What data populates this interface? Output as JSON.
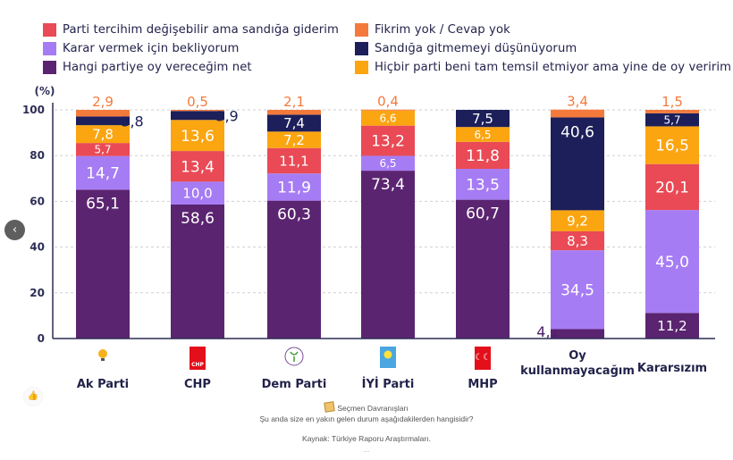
{
  "legend": [
    {
      "key": "tercih_degisebilir",
      "label": "Parti tercihim değişebilir ama sandığa giderim",
      "color": "#e94a55"
    },
    {
      "key": "karar_bekliyor",
      "label": "Karar vermek için bekliyorum",
      "color": "#a67cf4"
    },
    {
      "key": "net",
      "label": "Hangi partiye oy vereceğim net",
      "color": "#5b2470"
    },
    {
      "key": "fikrim_yok",
      "label": "Fikrim yok / Cevap yok",
      "color": "#f47a3c"
    },
    {
      "key": "sandiga_gitmeme",
      "label": "Sandığa gitmemeyi düşünüyorum",
      "color": "#1c1f5a"
    },
    {
      "key": "hicbir_parti",
      "label": "Hiçbir parti beni tam temsil etmiyor ama yine de oy veririm",
      "color": "#fba511"
    }
  ],
  "chart_data": {
    "type": "bar",
    "stacked": true,
    "ylabel": "(%)",
    "ylim": [
      0,
      100
    ],
    "yticks": [
      "0",
      "20",
      "40",
      "60",
      "80",
      "100"
    ],
    "grid": true,
    "legend_position": "top",
    "categories": [
      "Ak Parti",
      "CHP",
      "Dem Parti",
      "İYİ Parti",
      "MHP",
      "Oy kullanmayacağım",
      "Kararsızım"
    ],
    "category_lines": [
      [
        "Ak Parti"
      ],
      [
        "CHP"
      ],
      [
        "Dem Parti"
      ],
      [
        "İYİ Parti"
      ],
      [
        "MHP"
      ],
      [
        "Oy",
        "kullanmayacağım"
      ],
      [
        "Kararsızım"
      ]
    ],
    "category_logos": [
      "akp-logo-icon",
      "chp-logo-icon",
      "dem-logo-icon",
      "iyi-logo-icon",
      "mhp-logo-icon",
      "",
      ""
    ],
    "series": [
      {
        "name": "Hangi partiye oy vereceğim net",
        "color": "#5b2470",
        "values": [
          65.1,
          58.6,
          60.3,
          73.4,
          60.7,
          4.1,
          11.2
        ],
        "labels": [
          "65,1",
          "58,6",
          "60,3",
          "73,4",
          "60,7",
          "4,1",
          "11,2"
        ]
      },
      {
        "name": "Karar vermek için bekliyorum",
        "color": "#a67cf4",
        "values": [
          14.7,
          10.0,
          11.9,
          6.5,
          13.5,
          34.5,
          45.0
        ],
        "labels": [
          "14,7",
          "10,0",
          "11,9",
          "6,5",
          "13,5",
          "34,5",
          "45,0"
        ]
      },
      {
        "name": "Parti tercihim değişebilir ama sandığa giderim",
        "color": "#e94a55",
        "values": [
          5.7,
          13.4,
          11.1,
          13.2,
          11.8,
          8.3,
          20.1
        ],
        "labels": [
          "5,7",
          "13,4",
          "11,1",
          "13,2",
          "11,8",
          "8,3",
          "20,1"
        ]
      },
      {
        "name": "Hiçbir parti beni tam temsil etmiyor ama yine de oy veririm",
        "color": "#fba511",
        "values": [
          7.8,
          13.6,
          7.2,
          6.6,
          6.5,
          9.2,
          16.5
        ],
        "labels": [
          "7,8",
          "13,6",
          "7,2",
          "6,6",
          "6,5",
          "9,2",
          "16,5"
        ]
      },
      {
        "name": "Sandığa gitmemeyi düşünüyorum",
        "color": "#1c1f5a",
        "values": [
          3.8,
          3.9,
          7.4,
          0,
          7.5,
          40.6,
          5.7
        ],
        "labels": [
          "3,8",
          "3,9",
          "7,4",
          "",
          "7,5",
          "40,6",
          "5,7"
        ]
      },
      {
        "name": "Fikrim yok / Cevap yok",
        "color": "#f47a3c",
        "values": [
          2.9,
          0.5,
          2.1,
          0.4,
          0,
          3.4,
          1.5
        ],
        "labels": [
          "2,9",
          "0,5",
          "2,1",
          "0,4",
          "",
          "3,4",
          "1,5"
        ]
      }
    ]
  },
  "caption": {
    "title": "Seçmen Davranışları",
    "question": "Şu anda size en yakın gelen durum aşağıdakilerden hangisidir?",
    "source": "Kaynak: Türkiye Raporu Araştırmaları.",
    "more": "..."
  },
  "controls": {
    "prev": "‹",
    "like": "👍"
  },
  "colors": {
    "axis": "#2d2d55",
    "grid": "#cfcfd6",
    "outside_label": "#1c1f5a",
    "top_label": "#f47a3c"
  }
}
